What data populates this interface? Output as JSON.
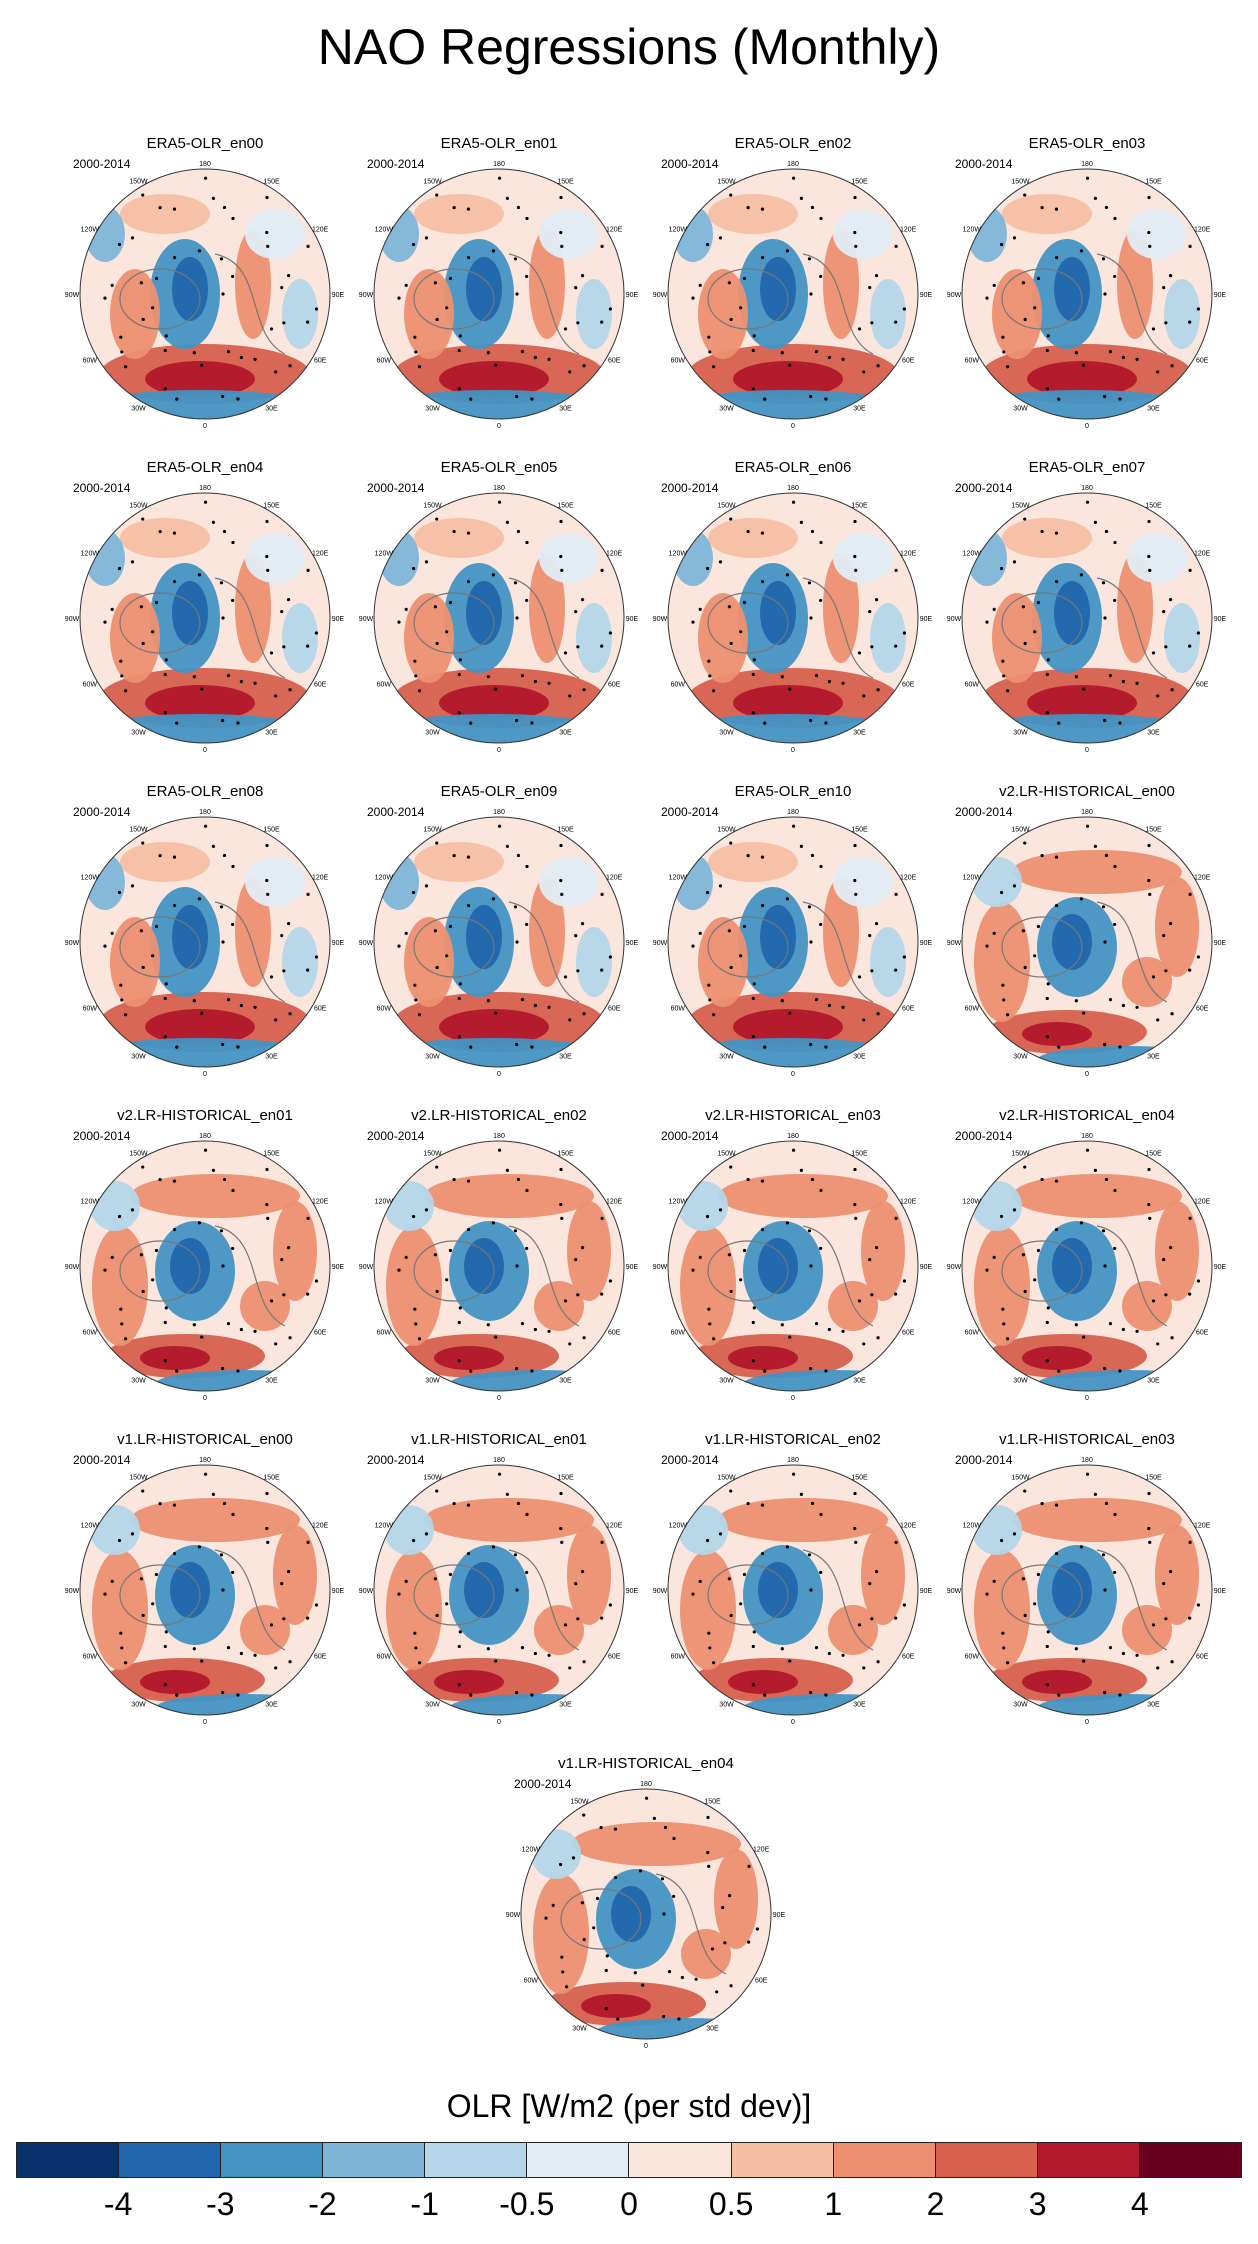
{
  "title": "NAO Regressions (Monthly)",
  "period": "2000-2014",
  "longitude_labels": [
    "180",
    "150E",
    "120E",
    "90E",
    "60E",
    "30E",
    "0",
    "30W",
    "60W",
    "90W",
    "120W",
    "150W"
  ],
  "panels": [
    {
      "title": "ERA5-OLR_en00",
      "group": "era5"
    },
    {
      "title": "ERA5-OLR_en01",
      "group": "era5"
    },
    {
      "title": "ERA5-OLR_en02",
      "group": "era5"
    },
    {
      "title": "ERA5-OLR_en03",
      "group": "era5"
    },
    {
      "title": "ERA5-OLR_en04",
      "group": "era5"
    },
    {
      "title": "ERA5-OLR_en05",
      "group": "era5"
    },
    {
      "title": "ERA5-OLR_en06",
      "group": "era5"
    },
    {
      "title": "ERA5-OLR_en07",
      "group": "era5"
    },
    {
      "title": "ERA5-OLR_en08",
      "group": "era5"
    },
    {
      "title": "ERA5-OLR_en09",
      "group": "era5"
    },
    {
      "title": "ERA5-OLR_en10",
      "group": "era5"
    },
    {
      "title": "v2.LR-HISTORICAL_en00",
      "group": "model"
    },
    {
      "title": "v2.LR-HISTORICAL_en01",
      "group": "model"
    },
    {
      "title": "v2.LR-HISTORICAL_en02",
      "group": "model"
    },
    {
      "title": "v2.LR-HISTORICAL_en03",
      "group": "model"
    },
    {
      "title": "v2.LR-HISTORICAL_en04",
      "group": "model"
    },
    {
      "title": "v1.LR-HISTORICAL_en00",
      "group": "model"
    },
    {
      "title": "v1.LR-HISTORICAL_en01",
      "group": "model"
    },
    {
      "title": "v1.LR-HISTORICAL_en02",
      "group": "model"
    },
    {
      "title": "v1.LR-HISTORICAL_en03",
      "group": "model"
    },
    {
      "title": "v1.LR-HISTORICAL_en04",
      "group": "model"
    }
  ],
  "colorbar": {
    "title": "OLR [W/m2 (per std dev)]",
    "colors": [
      "#08306b",
      "#2166ac",
      "#4393c3",
      "#7fb6d8",
      "#b4d6e8",
      "#e2ecf3",
      "#fbe6de",
      "#f7bfa4",
      "#ec9070",
      "#d6604d",
      "#b2182b",
      "#67001f"
    ],
    "tick_labels": [
      "-4",
      "-3",
      "-2",
      "-1",
      "-0.5",
      "0",
      "0.5",
      "1",
      "2",
      "3",
      "4"
    ]
  }
}
